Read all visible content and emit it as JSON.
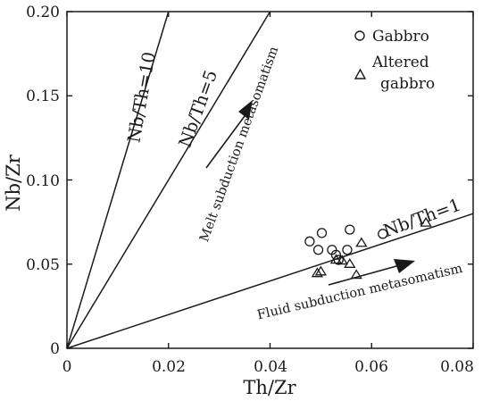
{
  "chart_data": {
    "type": "scatter",
    "xlabel": "Th/Zr",
    "ylabel": "Nb/Zr",
    "xlim": [
      0,
      0.08
    ],
    "ylim": [
      0,
      0.2
    ],
    "x_ticks": [
      "0",
      "0.02",
      "0.04",
      "0.06",
      "0.08"
    ],
    "y_ticks": [
      "0",
      "0.05",
      "0.10",
      "0.15",
      "0.20"
    ],
    "grid": false,
    "legend_position": "top-right",
    "series": [
      {
        "name": "Gabbro",
        "marker": "circle",
        "points": [
          {
            "x": 0.0478,
            "y": 0.0635
          },
          {
            "x": 0.0502,
            "y": 0.0685
          },
          {
            "x": 0.0495,
            "y": 0.0585
          },
          {
            "x": 0.0522,
            "y": 0.0585
          },
          {
            "x": 0.053,
            "y": 0.0555
          },
          {
            "x": 0.0535,
            "y": 0.0525
          },
          {
            "x": 0.0552,
            "y": 0.0585
          },
          {
            "x": 0.0557,
            "y": 0.0705
          },
          {
            "x": 0.0622,
            "y": 0.068
          }
        ]
      },
      {
        "name": "Altered gabbro",
        "marker": "triangle",
        "points": [
          {
            "x": 0.0493,
            "y": 0.045
          },
          {
            "x": 0.05,
            "y": 0.046
          },
          {
            "x": 0.053,
            "y": 0.053
          },
          {
            "x": 0.0542,
            "y": 0.0525
          },
          {
            "x": 0.0557,
            "y": 0.0505
          },
          {
            "x": 0.057,
            "y": 0.044
          },
          {
            "x": 0.058,
            "y": 0.063
          },
          {
            "x": 0.0707,
            "y": 0.075
          }
        ]
      }
    ],
    "reference_lines": [
      {
        "label": "Nb/Th=10",
        "ratio": 10
      },
      {
        "label": "Nb/Th=5",
        "ratio": 5
      },
      {
        "label": "Nb/Th=1",
        "ratio": 1
      }
    ],
    "annotations": [
      {
        "text": "Melt subduction metasomatism"
      },
      {
        "text": "Fluid subduction metasomatism"
      }
    ]
  }
}
